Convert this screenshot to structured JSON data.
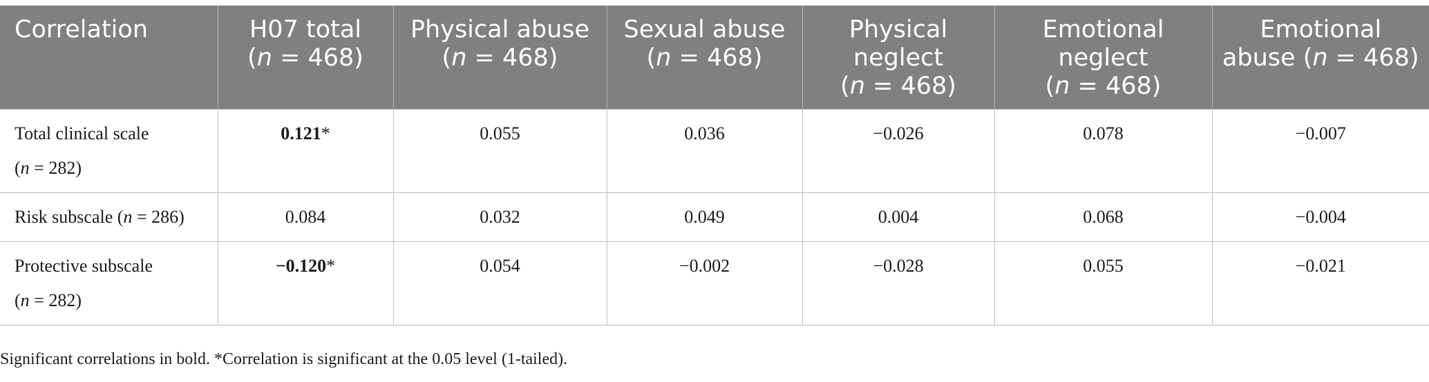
{
  "table": {
    "header": {
      "col0": "Correlation",
      "cols": [
        {
          "name": "H07 total",
          "n_pre": "(",
          "n_var": "n",
          "n_rest": " = 468)"
        },
        {
          "name": "Physical abuse",
          "n_pre": "(",
          "n_var": "n",
          "n_rest": " = 468)"
        },
        {
          "name": "Sexual abuse",
          "n_pre": "(",
          "n_var": "n",
          "n_rest": " = 468)"
        },
        {
          "name": "Physical neglect",
          "n_pre": "(",
          "n_var": "n",
          "n_rest": " = 468)"
        },
        {
          "name": "Emotional neglect",
          "n_pre": "(",
          "n_var": "n",
          "n_rest": " = 468)"
        },
        {
          "name": "Emotional abuse",
          "n_pre": "(",
          "n_var": "n",
          "n_rest": " = 468)"
        }
      ]
    },
    "rows": [
      {
        "label": "Total clinical scale",
        "n_pre": "(",
        "n_var": "n",
        "n_rest": " = 282)",
        "values": [
          {
            "v": "0.121",
            "star": "*"
          },
          {
            "v": "0.055",
            "star": ""
          },
          {
            "v": "0.036",
            "star": ""
          },
          {
            "v": "−0.026",
            "star": ""
          },
          {
            "v": "0.078",
            "star": ""
          },
          {
            "v": "−0.007",
            "star": ""
          }
        ]
      },
      {
        "label": "Risk subscale",
        "n_pre": "(",
        "n_var": "n",
        "n_rest": " = 286)",
        "values": [
          {
            "v": "0.084",
            "star": ""
          },
          {
            "v": "0.032",
            "star": ""
          },
          {
            "v": "0.049",
            "star": ""
          },
          {
            "v": "0.004",
            "star": ""
          },
          {
            "v": "0.068",
            "star": ""
          },
          {
            "v": "−0.004",
            "star": ""
          }
        ]
      },
      {
        "label": "Protective subscale",
        "n_pre": "(",
        "n_var": "n",
        "n_rest": " = 282)",
        "values": [
          {
            "v": "−0.120",
            "star": "*"
          },
          {
            "v": "0.054",
            "star": ""
          },
          {
            "v": "−0.002",
            "star": ""
          },
          {
            "v": "−0.028",
            "star": ""
          },
          {
            "v": "0.055",
            "star": ""
          },
          {
            "v": "−0.021",
            "star": ""
          }
        ]
      }
    ]
  },
  "footnote": "Significant correlations in bold. *Correlation is significant at the 0.05 level (1-tailed)."
}
